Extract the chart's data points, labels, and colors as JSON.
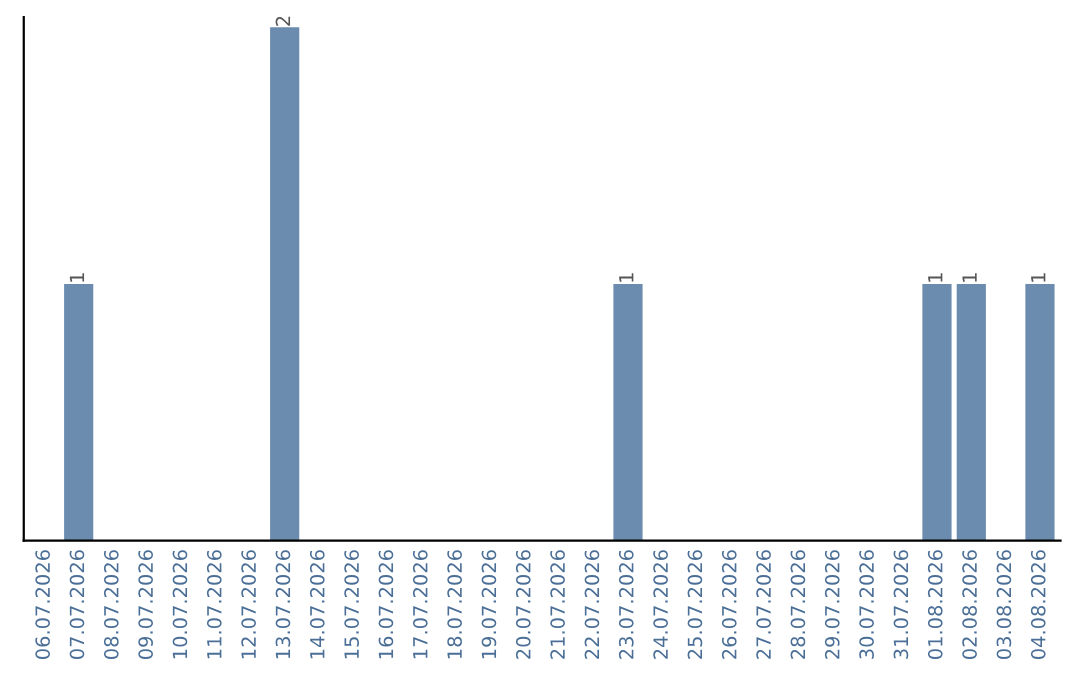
{
  "chart_data": {
    "type": "bar",
    "categories": [
      "06.07.2026",
      "07.07.2026",
      "08.07.2026",
      "09.07.2026",
      "10.07.2026",
      "11.07.2026",
      "12.07.2026",
      "13.07.2026",
      "14.07.2026",
      "15.07.2026",
      "16.07.2026",
      "17.07.2026",
      "18.07.2026",
      "19.07.2026",
      "20.07.2026",
      "21.07.2026",
      "22.07.2026",
      "23.07.2026",
      "24.07.2026",
      "25.07.2026",
      "26.07.2026",
      "27.07.2026",
      "28.07.2026",
      "29.07.2026",
      "30.07.2026",
      "31.07.2026",
      "01.08.2026",
      "02.08.2026",
      "03.08.2026",
      "04.08.2026"
    ],
    "values": [
      0,
      1,
      0,
      0,
      0,
      0,
      0,
      2,
      0,
      0,
      0,
      0,
      0,
      0,
      0,
      0,
      0,
      1,
      0,
      0,
      0,
      0,
      0,
      0,
      0,
      0,
      1,
      1,
      0,
      1
    ],
    "color": "#6b8cae",
    "value_labels": [
      null,
      "1",
      null,
      null,
      null,
      null,
      null,
      "2",
      null,
      null,
      null,
      null,
      null,
      null,
      null,
      null,
      null,
      "1",
      null,
      null,
      null,
      null,
      null,
      null,
      null,
      null,
      "1",
      "1",
      null,
      "1"
    ],
    "tick_labels": "x",
    "grid": false,
    "legend": false
  }
}
